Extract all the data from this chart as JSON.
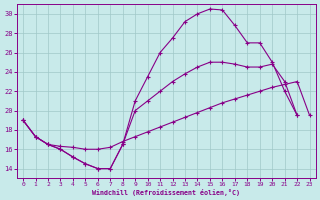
{
  "background_color": "#c8eaea",
  "grid_color": "#a0c8c8",
  "line_color": "#880088",
  "xlabel": "Windchill (Refroidissement éolien,°C)",
  "xlim": [
    -0.5,
    23.5
  ],
  "ylim": [
    13.0,
    31.0
  ],
  "yticks": [
    14,
    16,
    18,
    20,
    22,
    24,
    26,
    28,
    30
  ],
  "xticks": [
    0,
    1,
    2,
    3,
    4,
    5,
    6,
    7,
    8,
    9,
    10,
    11,
    12,
    13,
    14,
    15,
    16,
    17,
    18,
    19,
    20,
    21,
    22,
    23
  ],
  "series": [
    {
      "x": [
        0,
        1,
        2,
        3,
        4,
        5,
        6,
        7,
        8,
        9,
        10,
        11,
        12,
        13,
        14,
        15,
        16,
        17,
        18,
        19,
        20,
        21,
        22
      ],
      "y": [
        19.0,
        17.3,
        16.5,
        16.0,
        15.2,
        14.5,
        14.0,
        14.0,
        16.5,
        21.0,
        23.5,
        26.0,
        27.5,
        29.2,
        30.0,
        30.5,
        30.4,
        28.8,
        27.0,
        27.0,
        25.0,
        22.0,
        19.5
      ]
    },
    {
      "x": [
        0,
        1,
        2,
        3,
        4,
        5,
        6,
        7,
        8,
        9,
        10,
        11,
        12,
        13,
        14,
        15,
        16,
        17,
        18,
        19,
        20,
        21,
        22,
        23
      ],
      "y": [
        19.0,
        17.3,
        16.5,
        16.0,
        15.2,
        14.5,
        14.0,
        14.0,
        16.5,
        20.0,
        21.0,
        22.0,
        23.0,
        23.8,
        24.5,
        25.0,
        25.0,
        24.8,
        24.5,
        24.5,
        24.8,
        23.0,
        19.5,
        null
      ]
    },
    {
      "x": [
        0,
        1,
        2,
        3,
        4,
        5,
        6,
        7,
        8,
        9,
        10,
        11,
        12,
        13,
        14,
        15,
        16,
        17,
        18,
        19,
        20,
        21,
        22,
        23
      ],
      "y": [
        19.0,
        17.3,
        16.5,
        16.3,
        16.2,
        16.0,
        16.0,
        16.2,
        16.8,
        17.3,
        17.8,
        18.3,
        18.8,
        19.3,
        19.8,
        20.3,
        20.8,
        21.2,
        21.6,
        22.0,
        22.4,
        22.7,
        23.0,
        19.5
      ]
    }
  ]
}
